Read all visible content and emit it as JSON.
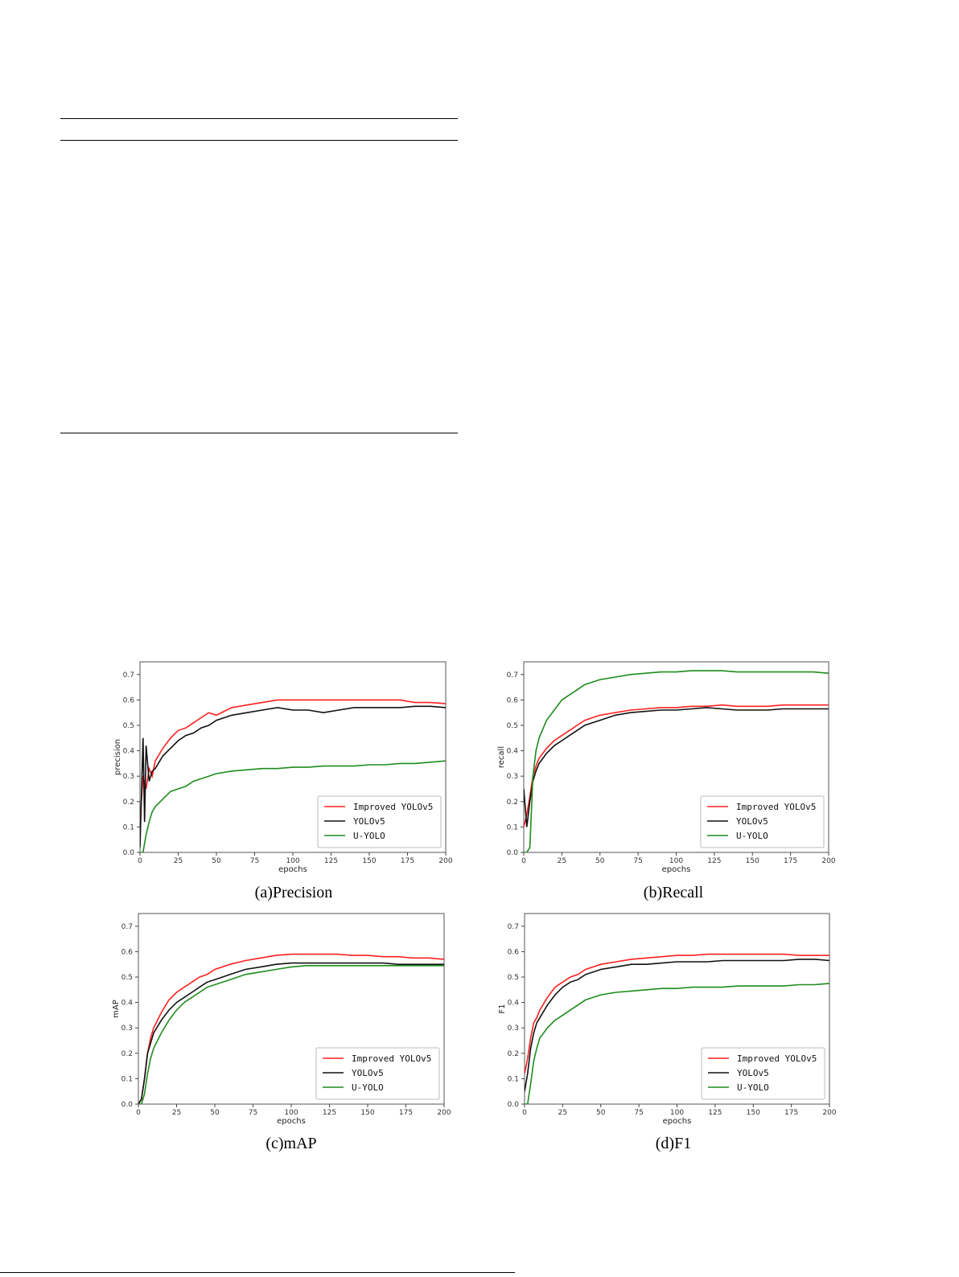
{
  "table_rules": true,
  "chart_data": [
    {
      "type": "line",
      "caption": "(a)Precision",
      "xlabel": "epochs",
      "ylabel": "precision",
      "xlim": [
        0,
        200
      ],
      "ylim": [
        0,
        0.75
      ],
      "xticks": [
        0,
        25,
        50,
        75,
        100,
        125,
        150,
        175,
        200
      ],
      "yticks": [
        0.0,
        0.1,
        0.2,
        0.3,
        0.4,
        0.5,
        0.6,
        0.7
      ],
      "legend_position": "lower-right",
      "series": [
        {
          "name": "Improved YOLOv5",
          "color": "#ff2020",
          "x": [
            0,
            2,
            4,
            6,
            8,
            10,
            15,
            20,
            25,
            30,
            35,
            40,
            45,
            50,
            60,
            70,
            80,
            90,
            100,
            110,
            120,
            130,
            140,
            150,
            160,
            170,
            180,
            190,
            200
          ],
          "y": [
            0.12,
            0.3,
            0.25,
            0.33,
            0.3,
            0.36,
            0.41,
            0.45,
            0.48,
            0.49,
            0.51,
            0.53,
            0.55,
            0.54,
            0.57,
            0.58,
            0.59,
            0.6,
            0.6,
            0.6,
            0.6,
            0.6,
            0.6,
            0.6,
            0.6,
            0.6,
            0.59,
            0.59,
            0.585
          ]
        },
        {
          "name": "YOLOv5",
          "color": "#111111",
          "x": [
            0,
            2,
            3,
            4,
            6,
            8,
            10,
            15,
            20,
            25,
            30,
            35,
            40,
            45,
            50,
            60,
            70,
            80,
            90,
            100,
            110,
            120,
            130,
            140,
            150,
            160,
            170,
            180,
            190,
            200
          ],
          "y": [
            0.02,
            0.45,
            0.12,
            0.42,
            0.28,
            0.32,
            0.33,
            0.38,
            0.41,
            0.44,
            0.46,
            0.47,
            0.49,
            0.5,
            0.52,
            0.54,
            0.55,
            0.56,
            0.57,
            0.56,
            0.56,
            0.55,
            0.56,
            0.57,
            0.57,
            0.57,
            0.57,
            0.575,
            0.575,
            0.57
          ]
        },
        {
          "name": "U-YOLO",
          "color": "#1e8c1e",
          "x": [
            0,
            2,
            4,
            6,
            8,
            10,
            15,
            20,
            25,
            30,
            35,
            40,
            45,
            50,
            60,
            70,
            80,
            90,
            100,
            110,
            120,
            130,
            140,
            150,
            160,
            170,
            180,
            190,
            200
          ],
          "y": [
            0.0,
            0.0,
            0.07,
            0.12,
            0.16,
            0.18,
            0.21,
            0.24,
            0.25,
            0.26,
            0.28,
            0.29,
            0.3,
            0.31,
            0.32,
            0.325,
            0.33,
            0.33,
            0.335,
            0.335,
            0.34,
            0.34,
            0.34,
            0.345,
            0.345,
            0.35,
            0.35,
            0.355,
            0.36
          ]
        }
      ]
    },
    {
      "type": "line",
      "caption": "(b)Recall",
      "xlabel": "epochs",
      "ylabel": "recall",
      "xlim": [
        0,
        200
      ],
      "ylim": [
        0,
        0.75
      ],
      "xticks": [
        0,
        25,
        50,
        75,
        100,
        125,
        150,
        175,
        200
      ],
      "yticks": [
        0.0,
        0.1,
        0.2,
        0.3,
        0.4,
        0.5,
        0.6,
        0.7
      ],
      "legend_position": "lower-right",
      "series": [
        {
          "name": "Improved YOLOv5",
          "color": "#ff2020",
          "x": [
            0,
            2,
            4,
            6,
            8,
            10,
            15,
            20,
            25,
            30,
            35,
            40,
            45,
            50,
            60,
            70,
            80,
            90,
            100,
            110,
            120,
            130,
            140,
            150,
            160,
            170,
            180,
            190,
            200
          ],
          "y": [
            0.1,
            0.15,
            0.22,
            0.3,
            0.34,
            0.37,
            0.41,
            0.44,
            0.46,
            0.48,
            0.5,
            0.52,
            0.53,
            0.54,
            0.55,
            0.56,
            0.565,
            0.57,
            0.57,
            0.575,
            0.575,
            0.58,
            0.575,
            0.575,
            0.575,
            0.58,
            0.58,
            0.58,
            0.58
          ]
        },
        {
          "name": "YOLOv5",
          "color": "#111111",
          "x": [
            0,
            2,
            4,
            6,
            8,
            10,
            15,
            20,
            25,
            30,
            35,
            40,
            45,
            50,
            60,
            70,
            80,
            90,
            100,
            110,
            120,
            130,
            140,
            150,
            160,
            170,
            180,
            190,
            200
          ],
          "y": [
            0.25,
            0.1,
            0.2,
            0.28,
            0.32,
            0.35,
            0.39,
            0.42,
            0.44,
            0.46,
            0.48,
            0.5,
            0.51,
            0.52,
            0.54,
            0.55,
            0.555,
            0.56,
            0.56,
            0.565,
            0.57,
            0.565,
            0.56,
            0.56,
            0.56,
            0.565,
            0.565,
            0.565,
            0.565
          ]
        },
        {
          "name": "U-YOLO",
          "color": "#1e8c1e",
          "x": [
            0,
            2,
            4,
            6,
            8,
            10,
            15,
            20,
            25,
            30,
            35,
            40,
            45,
            50,
            60,
            70,
            80,
            90,
            100,
            110,
            120,
            130,
            140,
            150,
            160,
            170,
            180,
            190,
            200
          ],
          "y": [
            0.0,
            0.0,
            0.02,
            0.3,
            0.4,
            0.45,
            0.52,
            0.56,
            0.6,
            0.62,
            0.64,
            0.66,
            0.67,
            0.68,
            0.69,
            0.7,
            0.705,
            0.71,
            0.71,
            0.715,
            0.715,
            0.715,
            0.71,
            0.71,
            0.71,
            0.71,
            0.71,
            0.71,
            0.705
          ]
        }
      ]
    },
    {
      "type": "line",
      "caption": "(c)mAP",
      "xlabel": "epochs",
      "ylabel": "mAP",
      "xlim": [
        0,
        200
      ],
      "ylim": [
        0,
        0.75
      ],
      "xticks": [
        0,
        25,
        50,
        75,
        100,
        125,
        150,
        175,
        200
      ],
      "yticks": [
        0.0,
        0.1,
        0.2,
        0.3,
        0.4,
        0.5,
        0.6,
        0.7
      ],
      "legend_position": "lower-right",
      "series": [
        {
          "name": "Improved YOLOv5",
          "color": "#ff2020",
          "x": [
            0,
            2,
            4,
            6,
            8,
            10,
            15,
            20,
            25,
            30,
            35,
            40,
            45,
            50,
            60,
            70,
            80,
            90,
            100,
            110,
            120,
            130,
            140,
            150,
            160,
            170,
            180,
            190,
            200
          ],
          "y": [
            0.0,
            0.02,
            0.1,
            0.2,
            0.26,
            0.3,
            0.36,
            0.41,
            0.44,
            0.46,
            0.48,
            0.5,
            0.51,
            0.53,
            0.55,
            0.565,
            0.575,
            0.585,
            0.59,
            0.59,
            0.59,
            0.59,
            0.585,
            0.585,
            0.58,
            0.58,
            0.575,
            0.575,
            0.57
          ]
        },
        {
          "name": "YOLOv5",
          "color": "#111111",
          "x": [
            0,
            2,
            4,
            6,
            8,
            10,
            15,
            20,
            25,
            30,
            35,
            40,
            45,
            50,
            60,
            70,
            80,
            90,
            100,
            110,
            120,
            130,
            140,
            150,
            160,
            170,
            180,
            190,
            200
          ],
          "y": [
            0.0,
            0.02,
            0.1,
            0.2,
            0.24,
            0.28,
            0.33,
            0.37,
            0.4,
            0.42,
            0.44,
            0.46,
            0.48,
            0.49,
            0.51,
            0.53,
            0.54,
            0.55,
            0.555,
            0.555,
            0.555,
            0.555,
            0.555,
            0.555,
            0.555,
            0.55,
            0.55,
            0.55,
            0.55
          ]
        },
        {
          "name": "U-YOLO",
          "color": "#1e8c1e",
          "x": [
            0,
            2,
            4,
            6,
            8,
            10,
            15,
            20,
            25,
            30,
            35,
            40,
            45,
            50,
            60,
            70,
            80,
            90,
            100,
            110,
            120,
            130,
            140,
            150,
            160,
            170,
            180,
            190,
            200
          ],
          "y": [
            0.0,
            0.0,
            0.04,
            0.12,
            0.18,
            0.22,
            0.28,
            0.33,
            0.37,
            0.4,
            0.42,
            0.44,
            0.46,
            0.47,
            0.49,
            0.51,
            0.52,
            0.53,
            0.54,
            0.545,
            0.545,
            0.545,
            0.545,
            0.545,
            0.545,
            0.545,
            0.545,
            0.545,
            0.545
          ]
        }
      ]
    },
    {
      "type": "line",
      "caption": "(d)F1",
      "xlabel": "epochs",
      "ylabel": "F1",
      "xlim": [
        0,
        200
      ],
      "ylim": [
        0,
        0.75
      ],
      "xticks": [
        0,
        25,
        50,
        75,
        100,
        125,
        150,
        175,
        200
      ],
      "yticks": [
        0.0,
        0.1,
        0.2,
        0.3,
        0.4,
        0.5,
        0.6,
        0.7
      ],
      "legend_position": "lower-right",
      "series": [
        {
          "name": "Improved YOLOv5",
          "color": "#ff2020",
          "x": [
            0,
            2,
            4,
            6,
            8,
            10,
            15,
            20,
            25,
            30,
            35,
            40,
            45,
            50,
            60,
            70,
            80,
            90,
            100,
            110,
            120,
            130,
            140,
            150,
            160,
            170,
            180,
            190,
            200
          ],
          "y": [
            0.12,
            0.18,
            0.26,
            0.32,
            0.34,
            0.37,
            0.42,
            0.46,
            0.48,
            0.5,
            0.51,
            0.53,
            0.54,
            0.55,
            0.56,
            0.57,
            0.575,
            0.58,
            0.585,
            0.585,
            0.59,
            0.59,
            0.59,
            0.59,
            0.59,
            0.59,
            0.585,
            0.585,
            0.585
          ]
        },
        {
          "name": "YOLOv5",
          "color": "#111111",
          "x": [
            0,
            2,
            4,
            6,
            8,
            10,
            15,
            20,
            25,
            30,
            35,
            40,
            45,
            50,
            60,
            70,
            80,
            90,
            100,
            110,
            120,
            130,
            140,
            150,
            160,
            170,
            180,
            190,
            200
          ],
          "y": [
            0.05,
            0.12,
            0.22,
            0.28,
            0.32,
            0.34,
            0.39,
            0.43,
            0.46,
            0.48,
            0.49,
            0.51,
            0.52,
            0.53,
            0.54,
            0.55,
            0.55,
            0.555,
            0.56,
            0.56,
            0.56,
            0.565,
            0.565,
            0.565,
            0.565,
            0.565,
            0.57,
            0.57,
            0.565
          ]
        },
        {
          "name": "U-YOLO",
          "color": "#1e8c1e",
          "x": [
            0,
            2,
            4,
            6,
            8,
            10,
            15,
            20,
            25,
            30,
            35,
            40,
            45,
            50,
            60,
            70,
            80,
            90,
            100,
            110,
            120,
            130,
            140,
            150,
            160,
            170,
            180,
            190,
            200
          ],
          "y": [
            0.0,
            0.0,
            0.08,
            0.17,
            0.22,
            0.26,
            0.3,
            0.33,
            0.35,
            0.37,
            0.39,
            0.41,
            0.42,
            0.43,
            0.44,
            0.445,
            0.45,
            0.455,
            0.455,
            0.46,
            0.46,
            0.46,
            0.465,
            0.465,
            0.465,
            0.465,
            0.47,
            0.47,
            0.475
          ]
        }
      ]
    }
  ]
}
